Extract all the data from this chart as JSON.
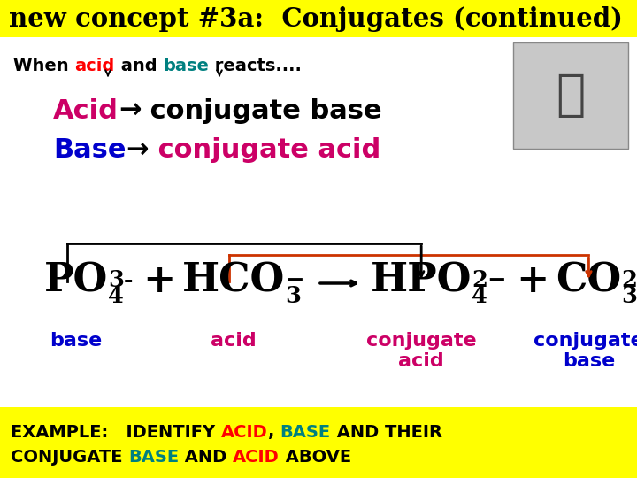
{
  "title": "new concept #3a:  Conjugates (continued)",
  "title_bg": "#ffff00",
  "title_color": "#000000",
  "bg_color": "#ffffff",
  "bottom_bg": "#ffff00",
  "acid_color": "#ff0000",
  "base_color": "#008080",
  "acid_label_color": "#cc0066",
  "base_label_color": "#0000cc",
  "arrow_black": "#000000",
  "arrow_red": "#cc3300",
  "when_parts": [
    {
      "text": "When ",
      "color": "#000000"
    },
    {
      "text": "acid",
      "color": "#ff0000"
    },
    {
      "text": " and ",
      "color": "#000000"
    },
    {
      "text": "base",
      "color": "#008080"
    },
    {
      "text": " reacts....",
      "color": "#000000"
    }
  ],
  "acid_line_parts": [
    {
      "text": "Acid",
      "color": "#cc0066"
    },
    {
      "text": "→",
      "color": "#000000"
    },
    {
      "text": " conjugate base",
      "color": "#000000"
    }
  ],
  "base_line_parts": [
    {
      "text": "Base",
      "color": "#0000cc"
    },
    {
      "text": "→",
      "color": "#000000"
    },
    {
      "text": " conjugate acid",
      "color": "#cc0066"
    }
  ],
  "example_line1": [
    {
      "text": "EXAMPLE:   IDENTIFY ",
      "color": "#000000"
    },
    {
      "text": "ACID",
      "color": "#ff0000"
    },
    {
      "text": ", ",
      "color": "#000000"
    },
    {
      "text": "BASE",
      "color": "#008080"
    },
    {
      "text": " AND THEIR",
      "color": "#000000"
    }
  ],
  "example_line2": [
    {
      "text": "CONJUGATE ",
      "color": "#000000"
    },
    {
      "text": "BASE",
      "color": "#008080"
    },
    {
      "text": " AND ",
      "color": "#000000"
    },
    {
      "text": "ACID",
      "color": "#ff0000"
    },
    {
      "text": " ABOVE",
      "color": "#000000"
    }
  ]
}
